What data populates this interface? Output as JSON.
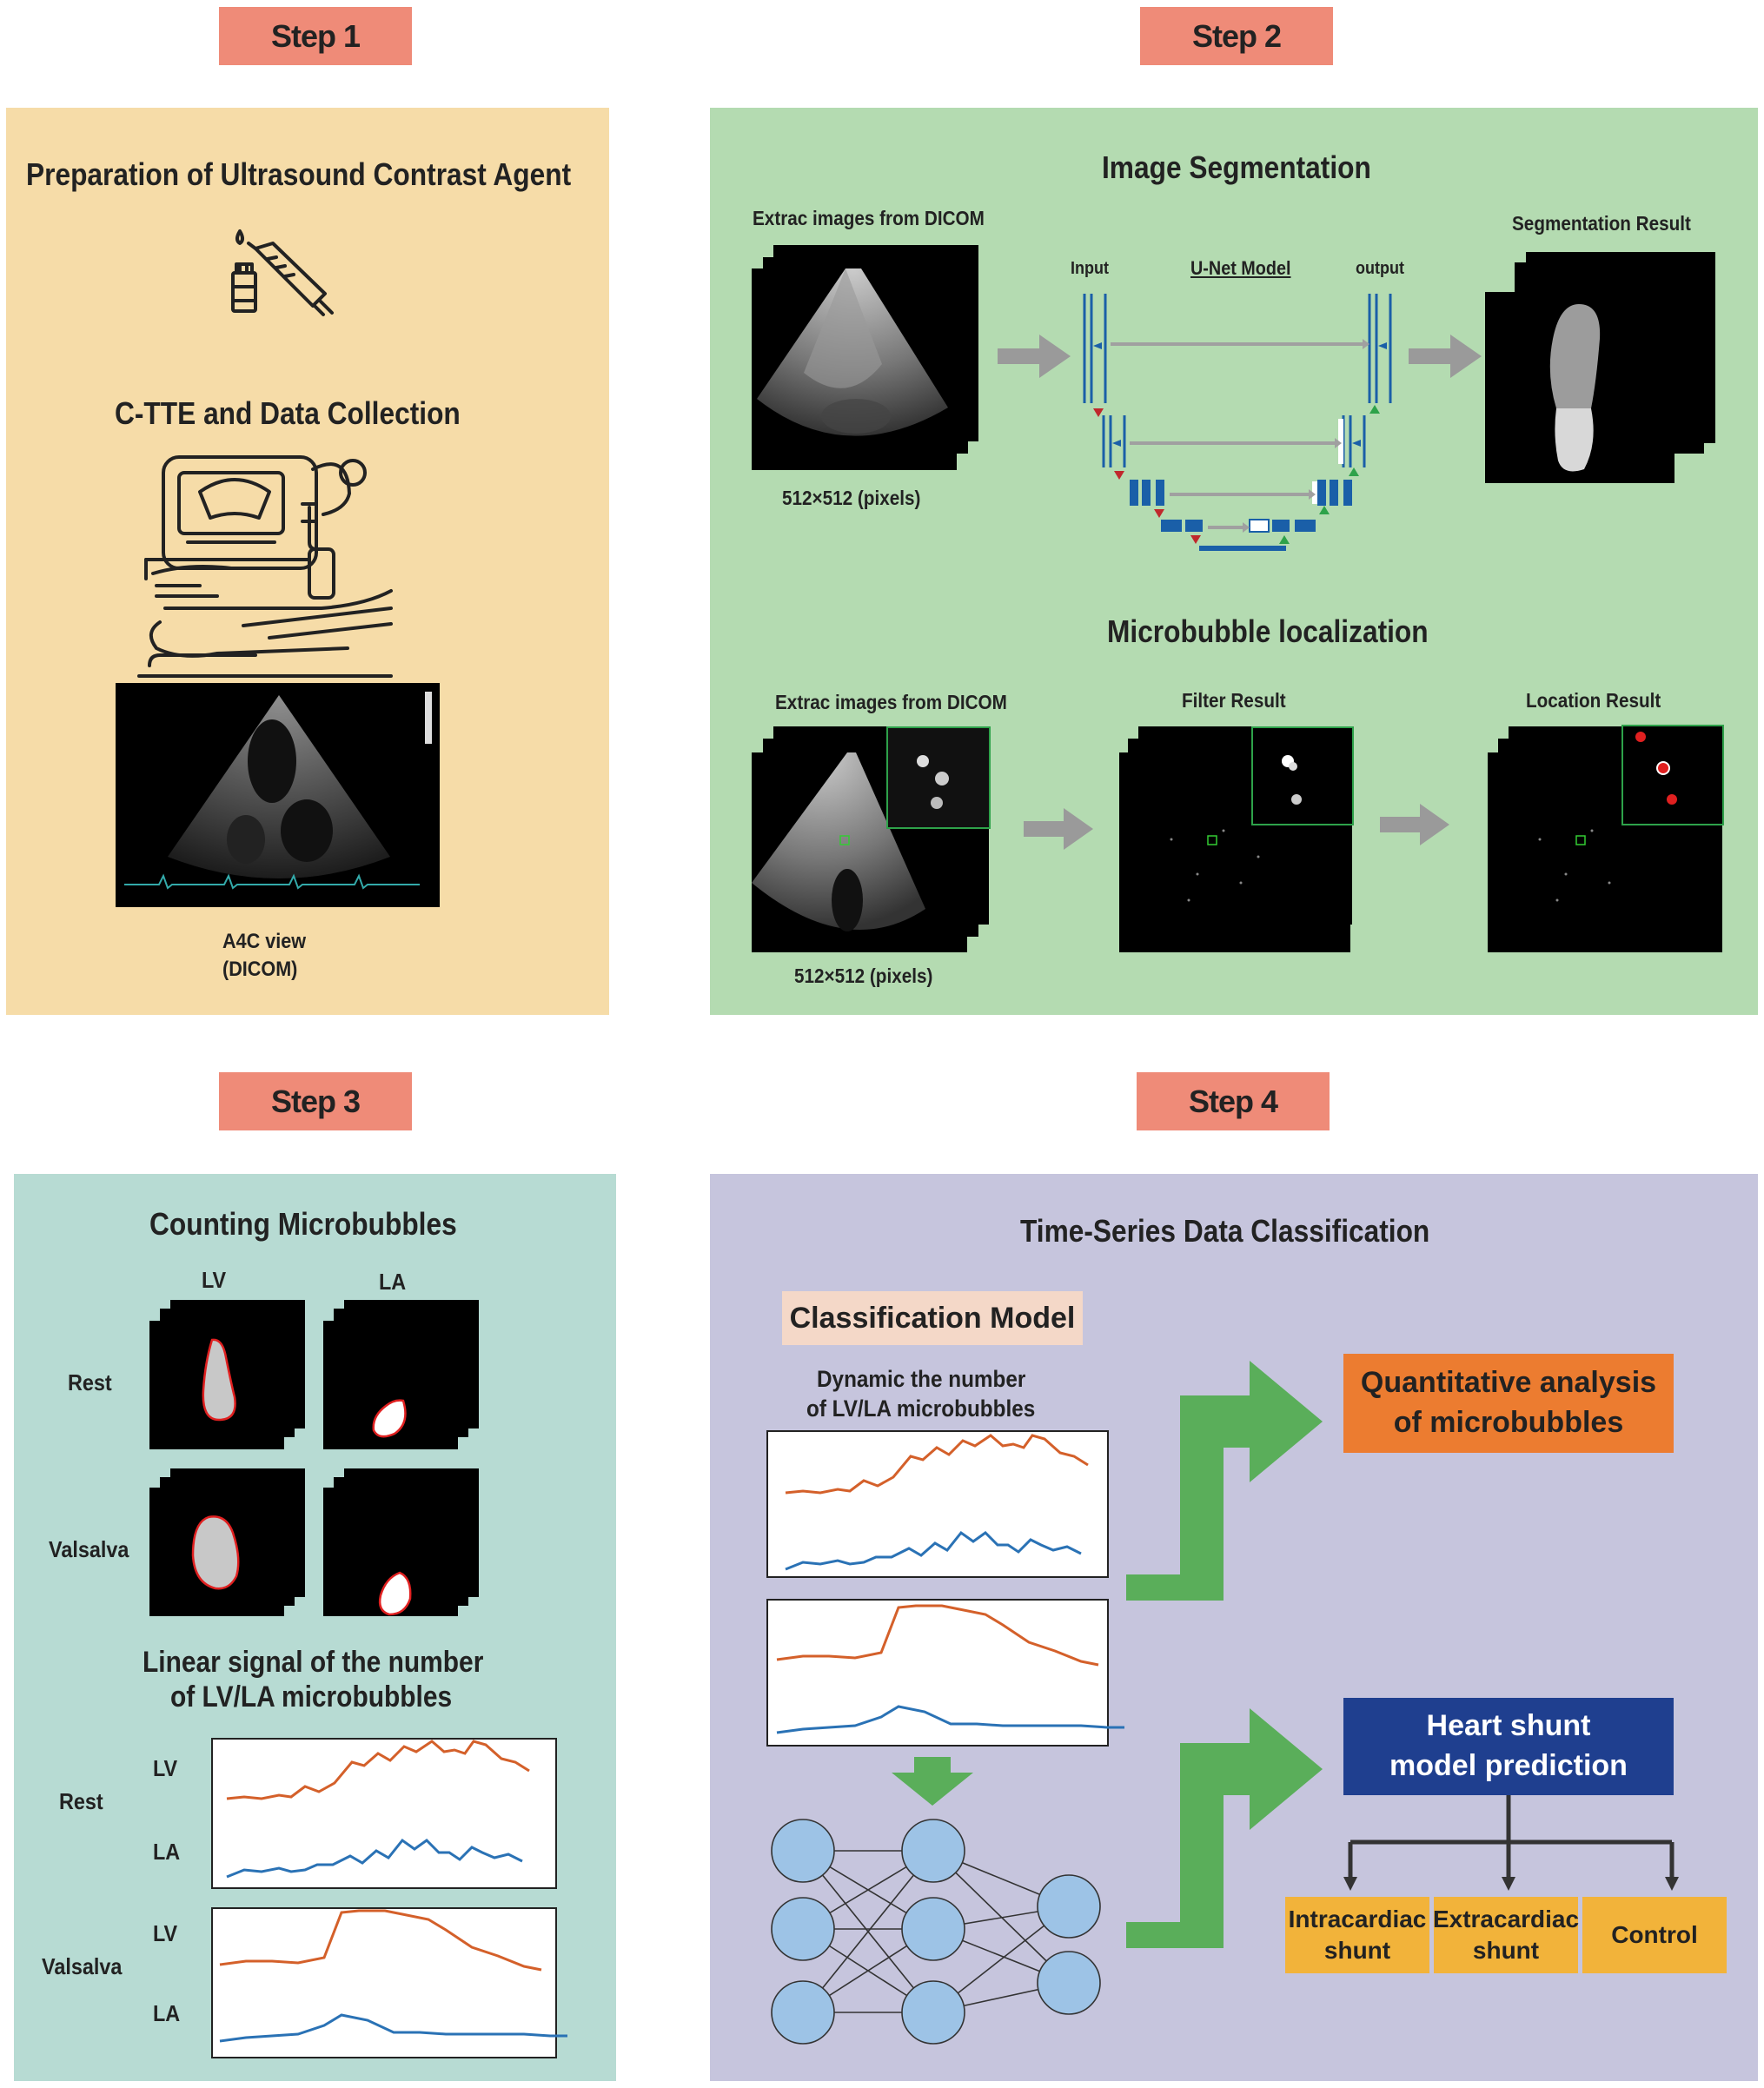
{
  "steps": [
    "Step 1",
    "Step 2",
    "Step 3",
    "Step 4"
  ],
  "step1": {
    "title1": "Preparation of Ultrasound Contrast Agent",
    "title2": "C-TTE and Data Collection",
    "caption_line1": "A4C view",
    "caption_line2": "(DICOM)"
  },
  "step2": {
    "seg_title": "Image Segmentation",
    "extract_label": "Extrac images from DICOM",
    "pixels_label": "512×512 (pixels)",
    "input_label": "Input",
    "model_label": "U-Net Model",
    "output_label": "output",
    "seg_result_label": "Segmentation Result",
    "loc_title": "Microbubble localization",
    "extract_label2": "Extrac images from DICOM",
    "filter_label": "Filter Result",
    "location_label": "Location Result",
    "pixels_label2": "512×512 (pixels)"
  },
  "step3": {
    "title": "Counting Microbubbles",
    "col_lv": "LV",
    "col_la": "LA",
    "row_rest": "Rest",
    "row_valsalva": "Valsalva",
    "signal_title_line1": "Linear signal of the number",
    "signal_title_line2": "of LV/LA microbubbles",
    "sig_lv": "LV",
    "sig_la": "LA",
    "sig_rest": "Rest",
    "sig_valsalva": "Valsalva"
  },
  "step4": {
    "title": "Time-Series Data Classification",
    "model_label": "Classification Model",
    "dyn_line1": "Dynamic the number",
    "dyn_line2": "of LV/LA microbubbles",
    "quant_line1": "Quantitative analysis",
    "quant_line2": "of microbubbles",
    "heart_line1": "Heart shunt",
    "heart_line2": "model prediction",
    "out_intra_line1": "Intracardiac",
    "out_intra_line2": "shunt",
    "out_extra_line1": "Extracardiac",
    "out_extra_line2": "shunt",
    "out_control": "Control"
  },
  "colors": {
    "step_badge": "#ef8b78",
    "panel1": "#f6dca8",
    "panel2": "#b4dbb1",
    "panel3": "#b7dbd3",
    "panel4": "#c6c5dd",
    "lv_signal": "#d4602a",
    "la_signal": "#2a72b5",
    "green_arrow": "#5aae5a",
    "quant_box": "#ec7c30",
    "heart_box": "#1f3f8f",
    "outcome_box": "#f2b33a",
    "node": "#9dc3e6"
  }
}
